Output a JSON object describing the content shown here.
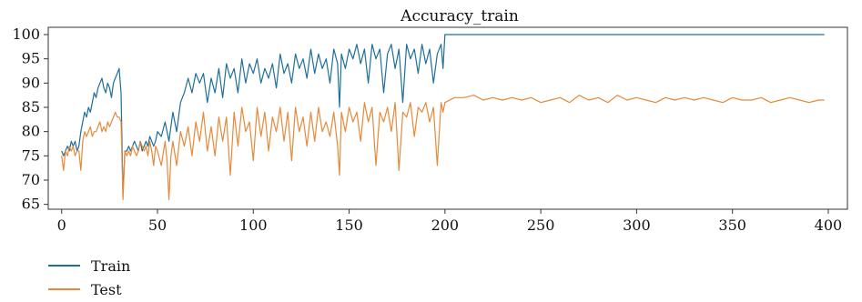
{
  "chart_data": {
    "type": "line",
    "title": "Accuracy_train",
    "xlabel": "",
    "ylabel": "",
    "xlim": [
      -7,
      410
    ],
    "ylim": [
      64,
      101.5
    ],
    "xticks": [
      0,
      50,
      100,
      150,
      200,
      250,
      300,
      350,
      400
    ],
    "yticks": [
      65,
      70,
      75,
      80,
      85,
      90,
      95,
      100
    ],
    "grid": false,
    "legend_position": "bottom-left",
    "series": [
      {
        "name": "Train",
        "color": "#1f6f99",
        "x": [
          0,
          1,
          2,
          3,
          4,
          5,
          6,
          7,
          8,
          9,
          10,
          11,
          12,
          13,
          14,
          15,
          16,
          17,
          18,
          19,
          20,
          21,
          22,
          23,
          24,
          25,
          26,
          27,
          28,
          29,
          30,
          31,
          32,
          33,
          34,
          35,
          36,
          37,
          38,
          39,
          40,
          41,
          42,
          43,
          44,
          45,
          46,
          47,
          48,
          49,
          50,
          52,
          54,
          56,
          58,
          60,
          62,
          64,
          66,
          68,
          70,
          72,
          74,
          76,
          78,
          80,
          82,
          84,
          86,
          88,
          90,
          92,
          94,
          96,
          98,
          100,
          102,
          104,
          106,
          108,
          110,
          112,
          114,
          116,
          118,
          120,
          122,
          124,
          126,
          128,
          130,
          132,
          134,
          136,
          138,
          140,
          142,
          144,
          145,
          146,
          148,
          150,
          152,
          154,
          156,
          158,
          160,
          162,
          164,
          166,
          168,
          170,
          172,
          174,
          176,
          178,
          180,
          182,
          184,
          186,
          188,
          190,
          192,
          194,
          196,
          198,
          199,
          200,
          220,
          250,
          300,
          350,
          398
        ],
        "values": [
          76,
          75,
          76,
          77,
          76,
          78,
          77,
          78,
          76,
          77,
          80,
          82,
          84,
          83,
          85,
          84,
          86,
          88,
          87,
          89,
          90,
          91,
          89,
          88,
          90,
          89,
          87,
          90,
          91,
          92,
          93,
          88,
          67,
          76,
          76,
          77,
          76,
          77,
          78,
          77,
          76,
          78,
          76,
          77,
          78,
          77,
          79,
          78,
          77,
          78,
          80,
          79,
          82,
          78,
          84,
          80,
          86,
          88,
          91,
          88,
          92,
          90,
          92,
          86,
          91,
          88,
          93,
          87,
          94,
          91,
          93,
          88,
          95,
          90,
          94,
          92,
          95,
          90,
          93,
          91,
          94,
          89,
          96,
          92,
          94,
          90,
          96,
          93,
          95,
          91,
          97,
          92,
          96,
          93,
          95,
          90,
          97,
          94,
          85,
          96,
          93,
          97,
          95,
          98,
          94,
          97,
          90,
          98,
          95,
          97,
          88,
          96,
          98,
          93,
          97,
          86,
          98,
          95,
          97,
          92,
          98,
          94,
          97,
          90,
          96,
          98,
          93,
          100,
          100,
          100,
          100,
          100,
          100
        ]
      },
      {
        "name": "Test",
        "color": "#e8893a",
        "x": [
          0,
          1,
          2,
          3,
          4,
          5,
          6,
          7,
          8,
          9,
          10,
          11,
          12,
          13,
          14,
          15,
          16,
          17,
          18,
          19,
          20,
          21,
          22,
          23,
          24,
          25,
          26,
          27,
          28,
          29,
          30,
          31,
          32,
          33,
          34,
          35,
          36,
          37,
          38,
          39,
          40,
          41,
          42,
          43,
          44,
          45,
          46,
          47,
          48,
          49,
          50,
          52,
          54,
          55,
          56,
          57,
          58,
          60,
          62,
          64,
          66,
          68,
          70,
          72,
          74,
          76,
          78,
          80,
          82,
          84,
          86,
          88,
          90,
          92,
          94,
          96,
          98,
          100,
          102,
          104,
          106,
          108,
          110,
          112,
          114,
          116,
          118,
          120,
          122,
          124,
          126,
          128,
          130,
          132,
          134,
          136,
          138,
          140,
          142,
          144,
          145,
          146,
          148,
          150,
          152,
          154,
          156,
          158,
          160,
          162,
          164,
          166,
          168,
          170,
          172,
          174,
          176,
          178,
          180,
          182,
          184,
          186,
          188,
          190,
          192,
          194,
          196,
          198,
          199,
          200,
          205,
          210,
          215,
          220,
          225,
          230,
          235,
          240,
          245,
          250,
          255,
          260,
          265,
          270,
          275,
          280,
          285,
          290,
          295,
          300,
          305,
          310,
          315,
          320,
          325,
          330,
          335,
          340,
          345,
          350,
          355,
          360,
          365,
          370,
          375,
          380,
          385,
          390,
          395,
          398
        ],
        "values": [
          75,
          72,
          76,
          75,
          77,
          76,
          77,
          75,
          76,
          76,
          72,
          78,
          80,
          79,
          80,
          81,
          79,
          80,
          80,
          81,
          82,
          80,
          81,
          80,
          82,
          81,
          82,
          83,
          84,
          83,
          83,
          82,
          66,
          76,
          75,
          76,
          75,
          77,
          76,
          75,
          76,
          78,
          77,
          76,
          77,
          75,
          78,
          76,
          73,
          77,
          76,
          73,
          78,
          74,
          66,
          75,
          78,
          73,
          80,
          77,
          81,
          75,
          82,
          78,
          84,
          76,
          81,
          75,
          83,
          78,
          83,
          71,
          84,
          77,
          85,
          80,
          82,
          74,
          85,
          79,
          84,
          76,
          83,
          80,
          85,
          78,
          84,
          74,
          85,
          80,
          83,
          77,
          84,
          78,
          85,
          80,
          82,
          79,
          84,
          77,
          71,
          84,
          80,
          85,
          82,
          84,
          78,
          86,
          82,
          85,
          73,
          84,
          82,
          85,
          80,
          86,
          72,
          84,
          83,
          86,
          79,
          85,
          84,
          86,
          82,
          85,
          73,
          86,
          84,
          86,
          87,
          87,
          87.5,
          86.5,
          87,
          86.5,
          87,
          86.5,
          87,
          86,
          86.5,
          87,
          86,
          87.5,
          86.5,
          87,
          86,
          87.5,
          86.5,
          87,
          86.5,
          86,
          87,
          86.5,
          87,
          86.5,
          87,
          86.5,
          86,
          87,
          86.5,
          86.5,
          87,
          86,
          86.5,
          87,
          86.5,
          86,
          86.5,
          86.5
        ]
      }
    ]
  }
}
